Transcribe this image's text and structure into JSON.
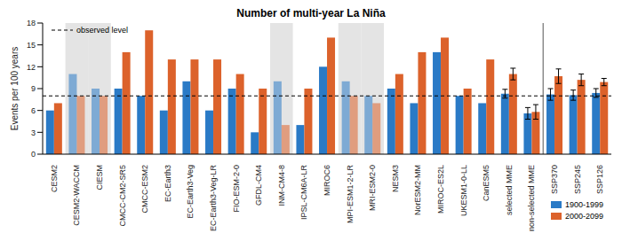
{
  "chart_data": {
    "type": "bar",
    "title": "Number of multi-year La Niña",
    "y_label": "Events per 100 years",
    "categories": [
      "CESM2",
      "CESM2-WACCM",
      "CIESM",
      "CMCC-CM2-SR5",
      "CMCC-ESM2",
      "EC-Earth3",
      "EC-Earth3-Veg",
      "EC-Earth3-Veg-LR",
      "FIO-ESM-2-0",
      "GFDL-CM4",
      "INM-CM4-8",
      "IPSL-CM6A-LR",
      "MIROC6",
      "MPI-ESM1-2-LR",
      "MRI-ESM2-0",
      "NESM3",
      "NorESM2-MM",
      "MIROC-ES2L",
      "UKESM1-0-LL",
      "CanESM5",
      "selected MME",
      "non-selected MME",
      "SSP370",
      "SSP245",
      "SSP126"
    ],
    "shaded": [
      false,
      true,
      true,
      false,
      false,
      false,
      false,
      false,
      false,
      false,
      true,
      false,
      false,
      true,
      true,
      false,
      false,
      false,
      false,
      false,
      false,
      false,
      false,
      false,
      false
    ],
    "separator_before": "SSP370",
    "series": [
      {
        "name": "1900-1999",
        "color": "#2a7ac6",
        "values": [
          6,
          11,
          9,
          9,
          8,
          6,
          10,
          6,
          9,
          3,
          10,
          4,
          12,
          10,
          8,
          9,
          7,
          14,
          8,
          7,
          8.3,
          5.6,
          8.2,
          8.1,
          8.4
        ],
        "errors": [
          null,
          null,
          null,
          null,
          null,
          null,
          null,
          null,
          null,
          null,
          null,
          null,
          null,
          null,
          null,
          null,
          null,
          null,
          null,
          null,
          0.6,
          0.8,
          0.8,
          0.7,
          0.6
        ]
      },
      {
        "name": "2000-2099",
        "color": "#dc622b",
        "values": [
          7,
          8,
          8,
          14,
          17,
          13,
          13,
          13,
          11,
          9,
          4,
          9,
          16,
          8,
          7,
          11,
          14,
          16,
          9,
          13,
          11,
          5.8,
          10.7,
          10.2,
          9.9
        ],
        "errors": [
          null,
          null,
          null,
          null,
          null,
          null,
          null,
          null,
          null,
          null,
          null,
          null,
          null,
          null,
          null,
          null,
          null,
          null,
          null,
          null,
          0.8,
          1.0,
          1.0,
          0.8,
          0.5
        ]
      }
    ],
    "reference_line": {
      "value": 8,
      "label": "observed level",
      "line_style": "dashed"
    },
    "ylim": [
      0,
      18
    ],
    "yticks": [
      0,
      3,
      6,
      9,
      12,
      15,
      18
    ],
    "legend": "lower right",
    "grid": false
  }
}
